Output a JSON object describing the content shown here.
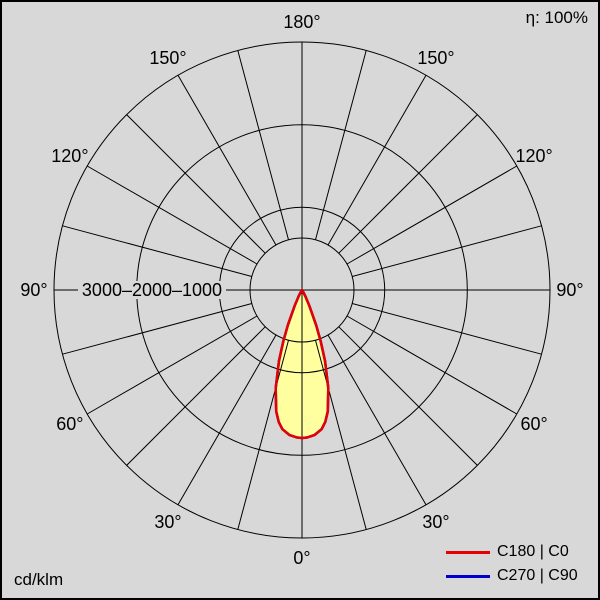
{
  "header": {
    "efficiency": "η: 100%"
  },
  "footer": {
    "unit": "cd/klm"
  },
  "legend": [
    {
      "label": "C180 | C0",
      "color": "#e60000"
    },
    {
      "label": "C270 | C90",
      "color": "#0000cc"
    }
  ],
  "chart_data": {
    "type": "polar-intensity-distribution",
    "unit": "cd/klm",
    "efficiency_percent": 100,
    "radial_max": 3000,
    "radial_ticks": [
      3000,
      2000,
      1000
    ],
    "angle_ticks_deg": [
      0,
      30,
      60,
      90,
      120,
      150,
      180
    ],
    "grid_step_deg": 15,
    "fill_color": "#ffffa0",
    "series": [
      {
        "name": "C180 | C0",
        "color": "#e60000",
        "angles_deg": [
          0,
          2,
          5,
          8,
          10,
          12,
          15,
          18,
          20,
          22,
          25,
          28,
          30,
          32,
          35
        ],
        "values_cd_klm": [
          1790,
          1785,
          1760,
          1700,
          1620,
          1500,
          1230,
          900,
          660,
          460,
          210,
          90,
          40,
          12,
          0
        ]
      },
      {
        "name": "C270 | C90",
        "color": "#0000cc",
        "angles_deg": [
          0,
          2,
          5,
          8,
          10,
          12,
          15,
          18,
          20,
          22,
          25,
          28,
          30,
          32,
          35
        ],
        "values_cd_klm": [
          1790,
          1785,
          1760,
          1700,
          1620,
          1500,
          1230,
          900,
          660,
          460,
          210,
          90,
          40,
          12,
          0
        ]
      }
    ]
  }
}
